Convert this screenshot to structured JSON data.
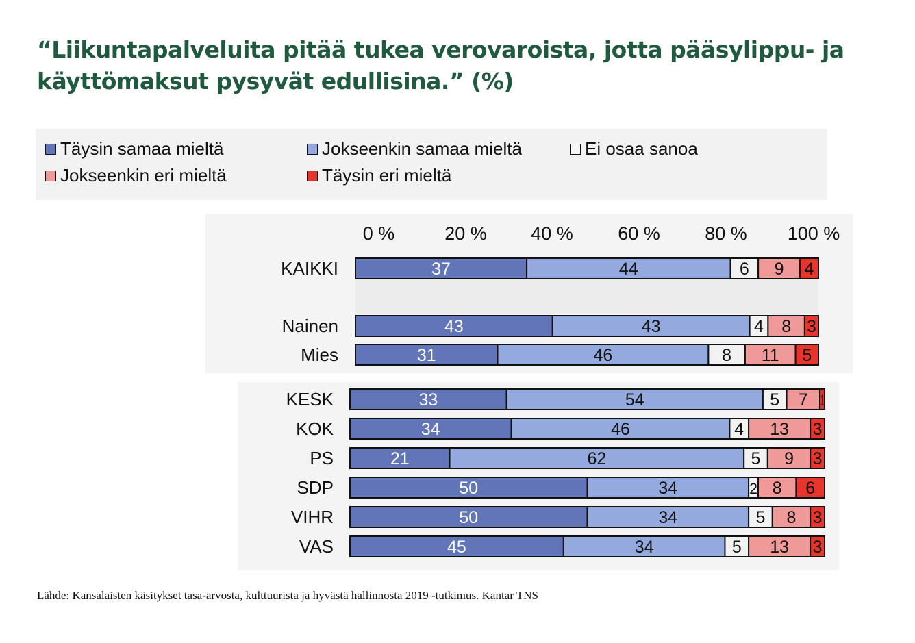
{
  "title": "“Liikuntapalveluita pitää tukea verovaroista, jotta pääsylippu- ja käyttömaksut pysyvät edullisina.” (%)",
  "source": "Lähde: Kansalaisten käsitykset tasa-arvosta, kulttuurista ja hyvästä hallinnosta 2019 -tutkimus. Kantar TNS",
  "chart_data": {
    "type": "bar",
    "orientation": "horizontal",
    "stacked": "100%",
    "title": "“Liikuntapalveluita pitää tukea verovaroista, jotta pääsylippu- ja käyttömaksut pysyvät edullisina.” (%)",
    "xlim": [
      0,
      100
    ],
    "xticks": [
      "0 %",
      "20 %",
      "40 %",
      "60 %",
      "80 %",
      "100 %"
    ],
    "legend_position": "top",
    "grid": false,
    "groups": [
      {
        "categories": [
          "KAIKKI",
          "Nainen",
          "Mies"
        ]
      },
      {
        "categories": [
          "KESK",
          "KOK",
          "PS",
          "SDP",
          "VIHR",
          "VAS"
        ]
      }
    ],
    "categories": [
      "KAIKKI",
      "Nainen",
      "Mies",
      "KESK",
      "KOK",
      "PS",
      "SDP",
      "VIHR",
      "VAS"
    ],
    "series": [
      {
        "name": "Täysin samaa mieltä",
        "color": "#6175b8",
        "values": [
          37,
          43,
          31,
          33,
          34,
          21,
          50,
          50,
          45
        ]
      },
      {
        "name": "Jokseenkin samaa mieltä",
        "color": "#94a9de",
        "values": [
          44,
          43,
          46,
          54,
          46,
          62,
          34,
          34,
          34
        ]
      },
      {
        "name": "Ei osaa sanoa",
        "color": "#f2f2f2",
        "values": [
          6,
          4,
          8,
          5,
          4,
          5,
          2,
          5,
          5
        ]
      },
      {
        "name": "Jokseenkin eri mieltä",
        "color": "#ef9999",
        "values": [
          9,
          8,
          11,
          7,
          13,
          9,
          8,
          8,
          13
        ]
      },
      {
        "name": "Täysin eri mieltä",
        "color": "#e8352b",
        "values": [
          4,
          3,
          5,
          1,
          3,
          3,
          6,
          3,
          3
        ]
      }
    ]
  }
}
